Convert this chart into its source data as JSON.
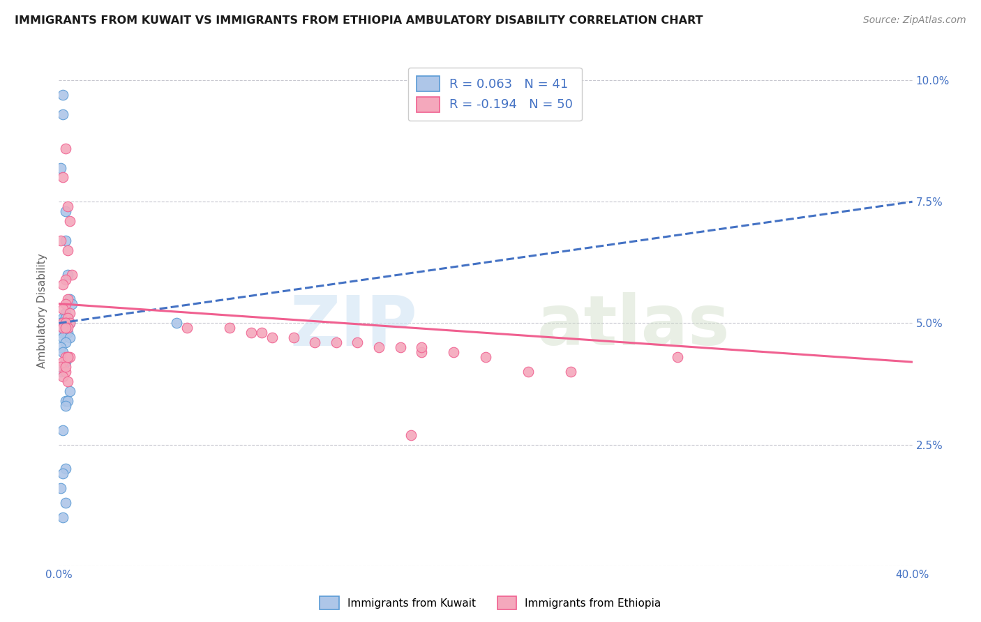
{
  "title": "IMMIGRANTS FROM KUWAIT VS IMMIGRANTS FROM ETHIOPIA AMBULATORY DISABILITY CORRELATION CHART",
  "source": "Source: ZipAtlas.com",
  "ylabel": "Ambulatory Disability",
  "xlim": [
    0.0,
    0.4
  ],
  "ylim": [
    0.0,
    0.105
  ],
  "xticks": [
    0.0,
    0.1,
    0.2,
    0.3,
    0.4
  ],
  "xticklabels_shown": {
    "0.0": "0.0%",
    "0.40": "40.0%"
  },
  "yticks": [
    0.0,
    0.025,
    0.05,
    0.075,
    0.1
  ],
  "yticklabels": [
    "",
    "2.5%",
    "5.0%",
    "7.5%",
    "10.0%"
  ],
  "kuwait_R": 0.063,
  "kuwait_N": 41,
  "ethiopia_R": -0.194,
  "ethiopia_N": 50,
  "kuwait_color": "#aec6e8",
  "ethiopia_color": "#f4a8bc",
  "kuwait_edge_color": "#5b9bd5",
  "ethiopia_edge_color": "#f06090",
  "kuwait_line_color": "#4472c4",
  "ethiopia_line_color": "#f06090",
  "tick_color": "#4472c4",
  "grid_color": "#c8c8d0",
  "kuwait_scatter_x": [
    0.002,
    0.002,
    0.001,
    0.003,
    0.003,
    0.004,
    0.005,
    0.006,
    0.003,
    0.002,
    0.004,
    0.003,
    0.003,
    0.002,
    0.001,
    0.005,
    0.004,
    0.003,
    0.001,
    0.003,
    0.004,
    0.002,
    0.005,
    0.003,
    0.001,
    0.002,
    0.004,
    0.003,
    0.002,
    0.001,
    0.005,
    0.003,
    0.004,
    0.003,
    0.055,
    0.002,
    0.003,
    0.002,
    0.001,
    0.003,
    0.002
  ],
  "kuwait_scatter_y": [
    0.097,
    0.093,
    0.082,
    0.073,
    0.067,
    0.06,
    0.055,
    0.054,
    0.052,
    0.051,
    0.051,
    0.051,
    0.05,
    0.05,
    0.05,
    0.05,
    0.05,
    0.049,
    0.048,
    0.048,
    0.048,
    0.047,
    0.047,
    0.046,
    0.045,
    0.044,
    0.043,
    0.042,
    0.041,
    0.04,
    0.036,
    0.034,
    0.034,
    0.033,
    0.05,
    0.028,
    0.02,
    0.019,
    0.016,
    0.013,
    0.01
  ],
  "ethiopia_scatter_x": [
    0.003,
    0.002,
    0.004,
    0.005,
    0.001,
    0.004,
    0.006,
    0.003,
    0.002,
    0.004,
    0.003,
    0.002,
    0.005,
    0.004,
    0.003,
    0.005,
    0.002,
    0.003,
    0.004,
    0.002,
    0.003,
    0.06,
    0.08,
    0.09,
    0.095,
    0.1,
    0.11,
    0.12,
    0.13,
    0.14,
    0.15,
    0.16,
    0.17,
    0.185,
    0.003,
    0.004,
    0.002,
    0.001,
    0.22,
    0.24,
    0.003,
    0.002,
    0.004,
    0.2,
    0.005,
    0.003,
    0.004,
    0.17,
    0.29,
    0.165
  ],
  "ethiopia_scatter_y": [
    0.086,
    0.08,
    0.074,
    0.071,
    0.067,
    0.065,
    0.06,
    0.059,
    0.058,
    0.055,
    0.054,
    0.053,
    0.052,
    0.051,
    0.05,
    0.05,
    0.05,
    0.05,
    0.049,
    0.049,
    0.049,
    0.049,
    0.049,
    0.048,
    0.048,
    0.047,
    0.047,
    0.046,
    0.046,
    0.046,
    0.045,
    0.045,
    0.044,
    0.044,
    0.043,
    0.043,
    0.042,
    0.041,
    0.04,
    0.04,
    0.04,
    0.039,
    0.038,
    0.043,
    0.043,
    0.041,
    0.043,
    0.045,
    0.043,
    0.027
  ]
}
